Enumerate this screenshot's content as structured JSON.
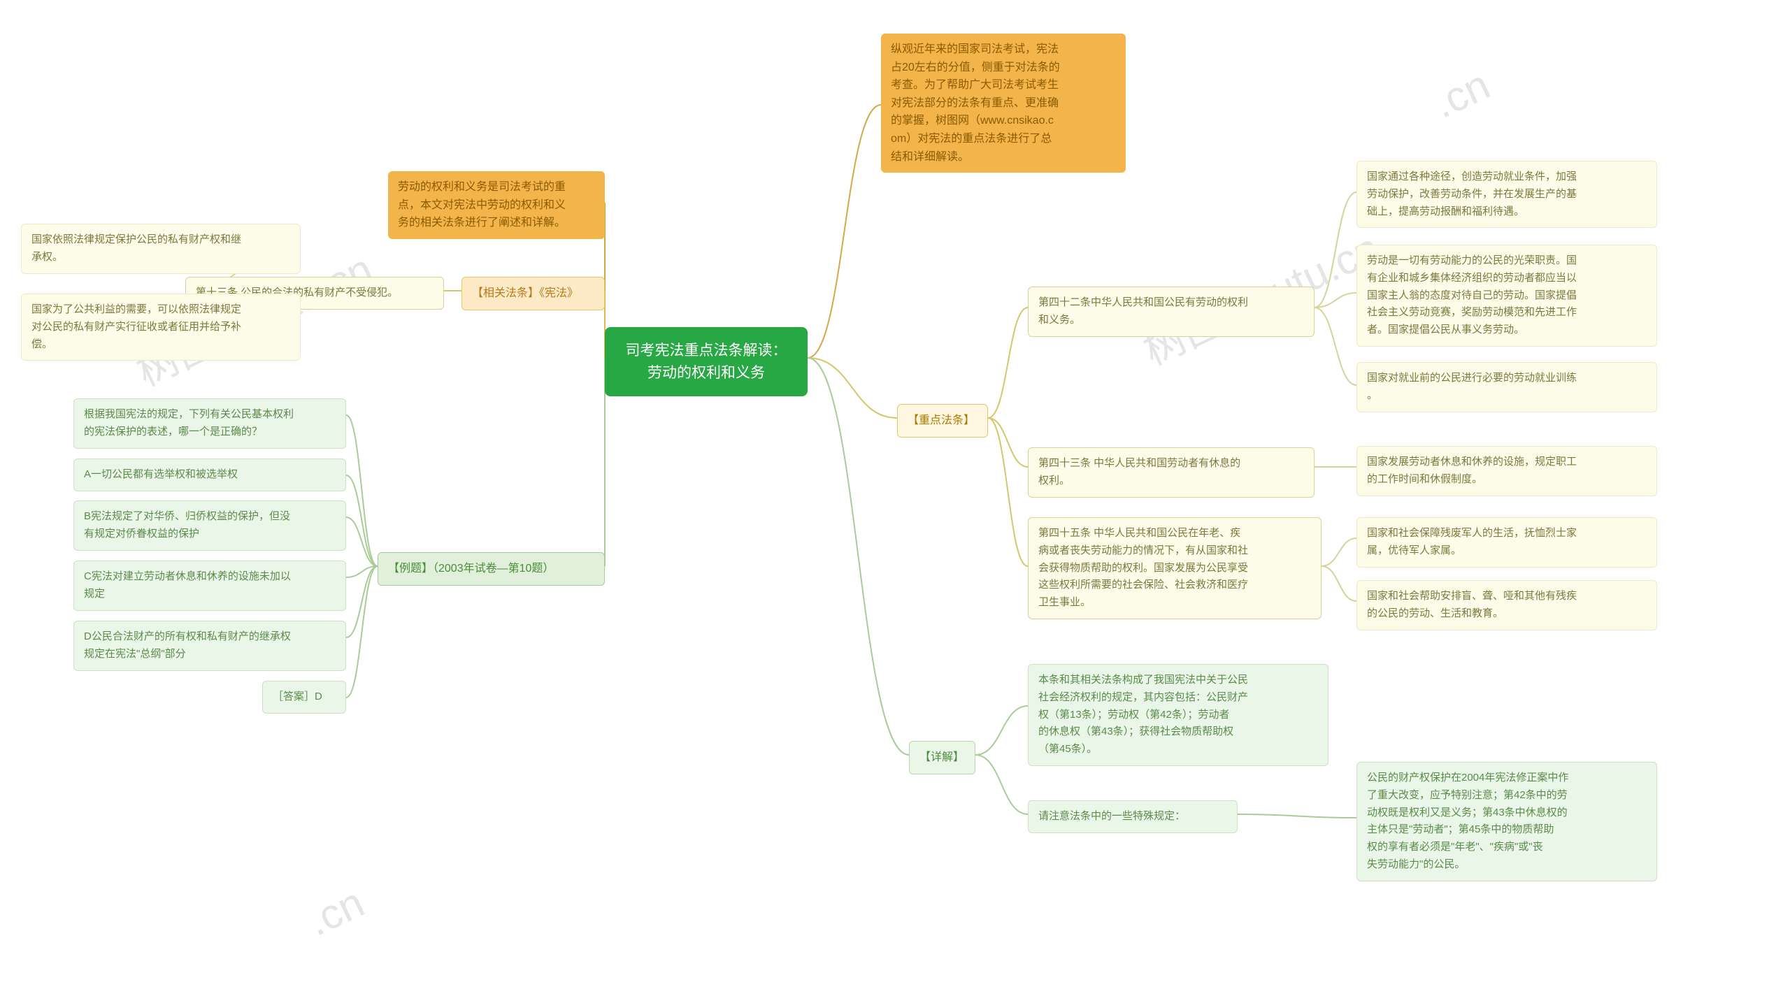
{
  "watermarks": {
    "text1": "树图 shutu.cn",
    "text2": "树图 shutu.cn",
    "text3": ".cn",
    "text4": ".cn"
  },
  "root": {
    "title": "司考宪法重点法条解读：\n劳动的权利和义务"
  },
  "right": {
    "intro": {
      "text": "纵观近年来的国家司法考试，宪法\n占20左右的分值，侧重于对法条的\n考查。为了帮助广大司法考试考生\n对宪法部分的法条有重点、更准确\n的掌握，树图网（www.cnsikao.c\nom）对宪法的重点法条进行了总\n结和详细解读。",
      "bg": "#f3b54b",
      "text_color": "#8b5a00"
    },
    "keypoints": {
      "label": "【重点法条】",
      "bg": "#fef6e0",
      "text_color": "#a87b00",
      "border": "#e6c66b",
      "items": [
        {
          "title": "第四十二条中华人民共和国公民有劳动的权利\n和义务。",
          "bg": "#fcfce8",
          "border": "#d4d49a",
          "text_color": "#7a7a40",
          "leaves": [
            {
              "text": "国家通过各种途径，创造劳动就业条件，加强\n劳动保护，改善劳动条件，并在发展生产的基\n础上，提高劳动报酬和福利待遇。"
            },
            {
              "text": "劳动是一切有劳动能力的公民的光荣职责。国\n有企业和城乡集体经济组织的劳动者都应当以\n国家主人翁的态度对待自己的劳动。国家提倡\n社会主义劳动竞赛，奖励劳动模范和先进工作\n者。国家提倡公民从事义务劳动。"
            },
            {
              "text": "国家对就业前的公民进行必要的劳动就业训练\n。"
            }
          ]
        },
        {
          "title": "第四十三条 中华人民共和国劳动者有休息的\n权利。",
          "leaves": [
            {
              "text": "国家发展劳动者休息和休养的设施，规定职工\n的工作时间和休假制度。"
            }
          ]
        },
        {
          "title": "第四十五条 中华人民共和国公民在年老、疾\n病或者丧失劳动能力的情况下，有从国家和社\n会获得物质帮助的权利。国家发展为公民享受\n这些权利所需要的社会保险、社会救济和医疗\n卫生事业。",
          "leaves": [
            {
              "text": "国家和社会保障残废军人的生活，抚恤烈士家\n属，优待军人家属。"
            },
            {
              "text": "国家和社会帮助安排盲、聋、哑和其他有残疾\n的公民的劳动、生活和教育。"
            }
          ]
        }
      ]
    },
    "detail": {
      "label": "【详解】",
      "bg": "#eaf7e8",
      "text_color": "#4a8b3a",
      "border": "#b5d8a8",
      "items": [
        {
          "text": "本条和其相关法条构成了我国宪法中关于公民\n社会经济权利的规定，其内容包括：公民财产\n权（第13条）；劳动权（第42条）；劳动者\n的休息权（第43条）；获得社会物质帮助权\n（第45条）。"
        },
        {
          "text": "请注意法条中的一些特殊规定：",
          "leaf": {
            "text": "公民的财产权保护在2004年宪法修正案中作\n了重大改变，应予特别注意；第42条中的劳\n动权既是权利又是义务；第43条中休息权的\n主体只是\"劳动者\"；第45条中的物质帮助\n权的享有者必须是\"年老\"、\"疾病\"或\"丧\n失劳动能力\"的公民。"
          }
        }
      ]
    }
  },
  "left": {
    "intro": {
      "text": "劳动的权利和义务是司法考试的重\n点，本文对宪法中劳动的权利和义\n务的相关法条进行了阐述和详解。",
      "bg": "#f3b54b",
      "text_color": "#8b5a00"
    },
    "related": {
      "label": "【相关法条】《宪法》",
      "bg": "#fce9c5",
      "text_color": "#b57a1a",
      "border": "#e6c66b",
      "item": {
        "title": "第十三条 公民的合法的私有财产不受侵犯。",
        "bg": "#fcfce8",
        "border": "#d4d49a",
        "text_color": "#7a7a40",
        "leaves": [
          {
            "text": "国家依照法律规定保护公民的私有财产权和继\n承权。"
          },
          {
            "text": "国家为了公共利益的需要，可以依照法律规定\n对公民的私有财产实行征收或者征用并给予补\n偿。"
          }
        ]
      }
    },
    "example": {
      "label": "【例题】（2003年试卷—第10题）",
      "bg": "#e0f0db",
      "text_color": "#4a8b3a",
      "border": "#a8cc98",
      "leaves": [
        {
          "text": "根据我国宪法的规定，下列有关公民基本权利\n的宪法保护的表述，哪一个是正确的？"
        },
        {
          "text": "A一切公民都有选举权和被选举权"
        },
        {
          "text": "B宪法规定了对华侨、归侨权益的保护，但没\n有规定对侨眷权益的保护"
        },
        {
          "text": "C宪法对建立劳动者休息和休养的设施未加以\n规定"
        },
        {
          "text": "D公民合法财产的所有权和私有财产的继承权\n规定在宪法\"总纲\"部分"
        },
        {
          "text": "［答案］D"
        }
      ]
    }
  },
  "leaf_style": {
    "bg": "#f0f6ed",
    "text_color": "#6a8a5a",
    "border": "#cde0c5"
  }
}
